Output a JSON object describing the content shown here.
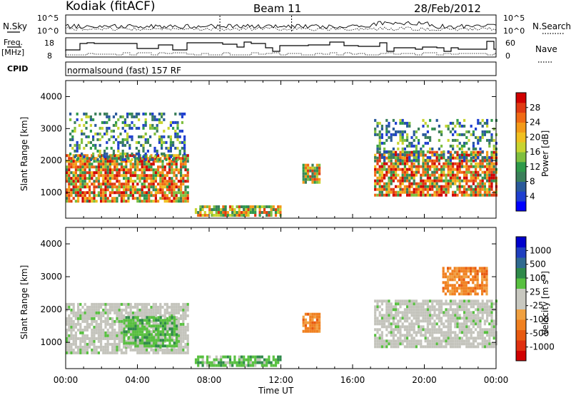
{
  "header": {
    "station": "Kodiak (fitACF)",
    "beam": "Beam 11",
    "date": "28/Feb/2012"
  },
  "panels": {
    "nsky": {
      "left_label": "N.Sky",
      "right_label": "N.Search",
      "left_ticks": [
        "10^5",
        "10^0"
      ],
      "right_ticks": [
        "10^5",
        "10^0"
      ]
    },
    "freq": {
      "label_line1": "Freq.",
      "label_line2": "[MHz]",
      "right_label": "Nave",
      "left_ticks": [
        "18",
        "8"
      ],
      "right_ticks": [
        "60",
        "0"
      ]
    },
    "cpid": {
      "label": "CPID",
      "text": "normalsound (fast) 157 RF"
    }
  },
  "colorbars": {
    "power": {
      "label": "Power [dB]",
      "ticks": [
        "4",
        "8",
        "12",
        "16",
        "20",
        "24",
        "28"
      ],
      "colors": [
        "#0000ff",
        "#1f3fd0",
        "#2a5a9a",
        "#3a7f5a",
        "#2f9a4a",
        "#7fbf3f",
        "#c8d430",
        "#f0c020",
        "#f39a18",
        "#f06a14",
        "#e03a12",
        "#d00000"
      ]
    },
    "velocity": {
      "label_main": "Velocity [m s",
      "label_sup": "-1",
      "label_end": "]",
      "ticks": [
        "1000",
        "500",
        "100",
        "25",
        "-25",
        "-100",
        "-500",
        "-1000"
      ],
      "colors": [
        "#0000cc",
        "#1f3fbf",
        "#2f6a90",
        "#2f8a4a",
        "#58c040",
        "#c8c8c0",
        "#c8c8c0",
        "#f0a040",
        "#f08020",
        "#e85a10",
        "#e03010",
        "#d00000"
      ]
    }
  },
  "chart_data": [
    {
      "type": "heatmap",
      "title": "",
      "ylabel": "Slant Range [km]",
      "xlabel": "",
      "ylim": [
        200,
        4500
      ],
      "xlim": [
        0,
        24
      ],
      "yticks": [
        "1000",
        "2000",
        "3000",
        "4000"
      ],
      "xticks": [
        "00:00",
        "04:00",
        "08:00",
        "12:00",
        "16:00",
        "20:00",
        "00:00"
      ],
      "colorbar": "Power [dB]",
      "regions": [
        {
          "t0": 0.0,
          "t1": 6.8,
          "r0": 700,
          "r1": 2200,
          "level": "high"
        },
        {
          "t0": 0.2,
          "t1": 6.6,
          "r0": 2000,
          "r1": 3500,
          "level": "low"
        },
        {
          "t0": 7.2,
          "t1": 12.0,
          "r0": 300,
          "r1": 600,
          "level": "medium"
        },
        {
          "t0": 13.2,
          "t1": 14.2,
          "r0": 1300,
          "r1": 1900,
          "level": "medium"
        },
        {
          "t0": 17.2,
          "t1": 24.0,
          "r0": 900,
          "r1": 2300,
          "level": "high"
        },
        {
          "t0": 17.2,
          "t1": 24.0,
          "r0": 2000,
          "r1": 3300,
          "level": "low"
        }
      ]
    },
    {
      "type": "heatmap",
      "title": "",
      "ylabel": "Slant Range [km]",
      "xlabel": "Time UT",
      "ylim": [
        200,
        4500
      ],
      "xlim": [
        0,
        24
      ],
      "yticks": [
        "1000",
        "2000",
        "3000",
        "4000"
      ],
      "xticks": [
        "00:00",
        "04:00",
        "08:00",
        "12:00",
        "16:00",
        "20:00",
        "00:00"
      ],
      "colorbar": "Velocity [m s-1]",
      "regions": [
        {
          "t0": 0.0,
          "t1": 6.8,
          "r0": 700,
          "r1": 2200,
          "level": "ground"
        },
        {
          "t0": 3.2,
          "t1": 6.2,
          "r0": 900,
          "r1": 1800,
          "level": "positive"
        },
        {
          "t0": 7.2,
          "t1": 12.0,
          "r0": 300,
          "r1": 600,
          "level": "positive"
        },
        {
          "t0": 13.2,
          "t1": 14.2,
          "r0": 1300,
          "r1": 1900,
          "level": "negative"
        },
        {
          "t0": 17.2,
          "t1": 24.0,
          "r0": 900,
          "r1": 2300,
          "level": "ground"
        },
        {
          "t0": 21.0,
          "t1": 23.5,
          "r0": 2500,
          "r1": 3300,
          "level": "negative"
        }
      ]
    }
  ]
}
